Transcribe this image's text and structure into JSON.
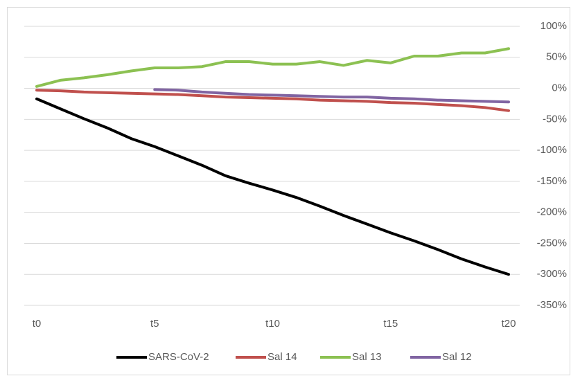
{
  "chart_data": {
    "type": "line",
    "categories": [
      "t0",
      null,
      null,
      null,
      null,
      "t5",
      null,
      null,
      null,
      null,
      "t10",
      null,
      null,
      null,
      null,
      "t15",
      null,
      null,
      null,
      null,
      "t20"
    ],
    "series": [
      {
        "name": "SARS-CoV-2",
        "color": "#000000",
        "values": [
          -17,
          -33,
          -49,
          -64,
          -81,
          -94,
          -109,
          -124,
          -141,
          -153,
          -164,
          -176,
          -190,
          -205,
          -219,
          -233,
          -246,
          -260,
          -275,
          -288,
          -300
        ]
      },
      {
        "name": "Sal 14",
        "color": "#c0504d",
        "values": [
          -3,
          -4,
          -6,
          -7,
          -8,
          -9,
          -10,
          -12,
          -14,
          -15,
          -16,
          -17,
          -19,
          -20,
          -21,
          -23,
          -24,
          -26,
          -28,
          -31,
          -36
        ]
      },
      {
        "name": "Sal 13",
        "color": "#8cc152",
        "values": [
          3,
          13,
          17,
          22,
          28,
          33,
          33,
          35,
          43,
          43,
          39,
          39,
          43,
          37,
          45,
          41,
          52,
          52,
          57,
          57,
          64
        ]
      },
      {
        "name": "Sal 12",
        "color": "#8064a2",
        "values": [
          null,
          null,
          null,
          null,
          null,
          -2,
          -3,
          -6,
          -8,
          -10,
          -11,
          -12,
          -13,
          -14,
          -14,
          -16,
          -17,
          -19,
          -20,
          -21,
          -22
        ]
      }
    ],
    "ylim": [
      -350,
      100
    ],
    "yticks": [
      {
        "value": -350,
        "label": "-350%"
      },
      {
        "value": -300,
        "label": "-300%"
      },
      {
        "value": -250,
        "label": "-250%"
      },
      {
        "value": -200,
        "label": "-200%"
      },
      {
        "value": -150,
        "label": "-150%"
      },
      {
        "value": -100,
        "label": "-100%"
      },
      {
        "value": -50,
        "label": "-50%"
      },
      {
        "value": 0,
        "label": "0%"
      },
      {
        "value": 50,
        "label": "50%"
      },
      {
        "value": 100,
        "label": "100%"
      }
    ],
    "grid": true,
    "y_axis_side": "right",
    "legend": "bottom"
  }
}
